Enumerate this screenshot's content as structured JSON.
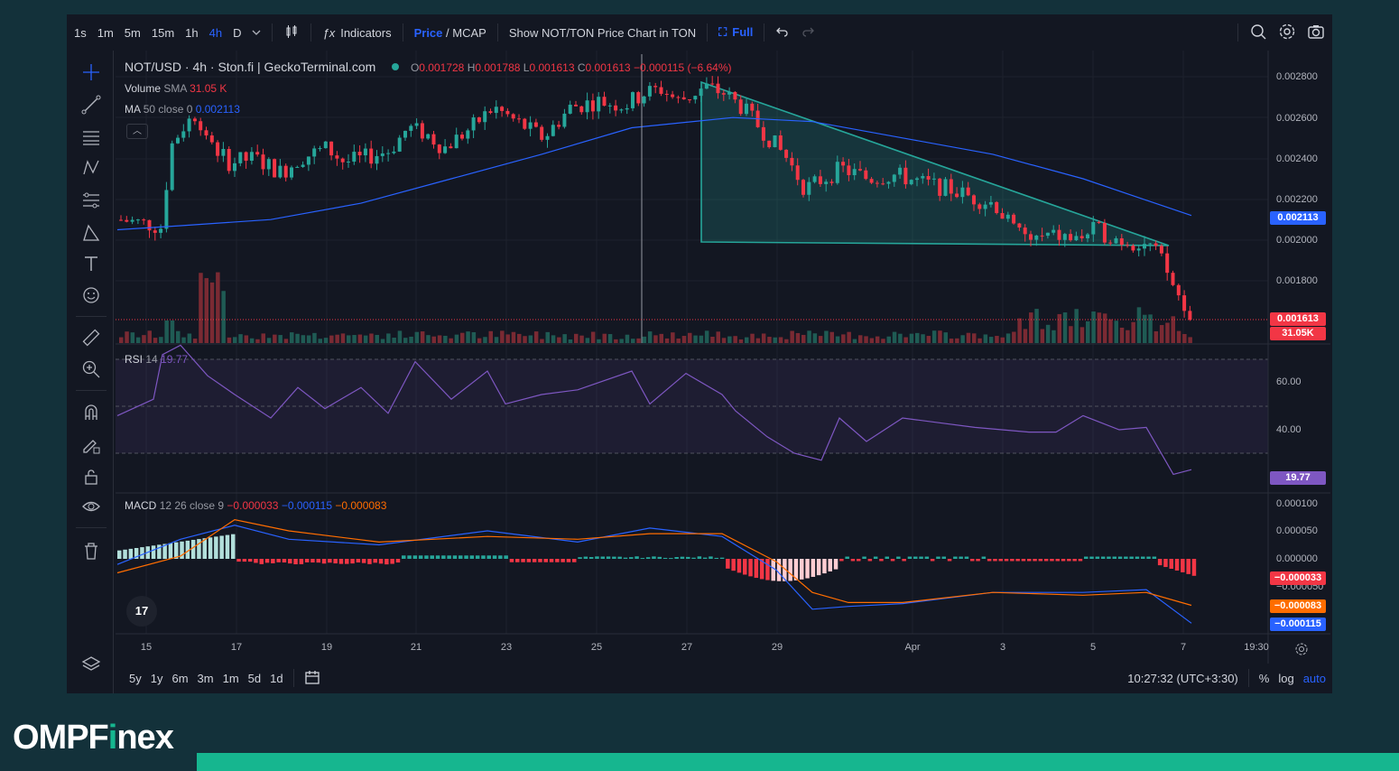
{
  "toolbar": {
    "intervals": [
      "1s",
      "1m",
      "5m",
      "15m",
      "1h",
      "4h",
      "D"
    ],
    "active_interval": "4h",
    "indicators_label": "Indicators",
    "price_label": "Price",
    "mcap_label": "MCAP",
    "price_mcap_sep": " / ",
    "show_ton_label": "Show NOT/TON Price Chart in TON",
    "full_label": "Full"
  },
  "legend": {
    "symbol": "NOT/USD · 4h · Ston.fi | GeckoTerminal.com",
    "o_label": "O",
    "o": "0.001728",
    "h_label": "H",
    "h": "0.001788",
    "l_label": "L",
    "l": "0.001613",
    "c_label": "C",
    "c": "0.001613",
    "change": "−0.000115 (−6.64%)",
    "volume_label": "Volume",
    "volume_sma": "SMA",
    "volume_value": "31.05 K",
    "ma_label": "MA",
    "ma_params": "50 close 0",
    "ma_value": "0.002113"
  },
  "rsi_legend": {
    "label": "RSI",
    "period": "14",
    "value": "19.77"
  },
  "macd_legend": {
    "label": "MACD",
    "params": "12 26 close 9",
    "hist": "−0.000033",
    "macd": "−0.000115",
    "signal": "−0.000083"
  },
  "price_axis": [
    "0.002800",
    "0.002600",
    "0.002400",
    "0.002200",
    "0.002000",
    "0.001800"
  ],
  "rsi_axis": [
    "60.00",
    "40.00"
  ],
  "macd_axis": [
    "0.000100",
    "0.000050",
    "0.000000",
    "−0.000050"
  ],
  "price_labels": {
    "ma": "0.002113",
    "last": "0.001613",
    "volume": "31.05K",
    "rsi": "19.77",
    "hist": "−0.000033",
    "signal": "−0.000083",
    "macd": "−0.000115"
  },
  "time_axis": [
    "15",
    "17",
    "19",
    "21",
    "23",
    "25",
    "27",
    "29",
    "Apr",
    "3",
    "5",
    "7",
    "19:30"
  ],
  "bottom": {
    "ranges": [
      "5y",
      "1y",
      "6m",
      "3m",
      "1m",
      "5d",
      "1d"
    ],
    "clock": "10:27:32 (UTC+3:30)",
    "percent": "%",
    "log": "log",
    "auto": "auto"
  },
  "tv_logo": "17",
  "brand": {
    "pre": "OMPF",
    "mark": "i",
    "post": "nex"
  },
  "colors": {
    "up": "#26a69a",
    "down": "#f23645",
    "ma": "#2962ff",
    "triangle": "#26a69a",
    "rsi": "#7e57c2",
    "macd": "#2962ff",
    "signal": "#ff6d00"
  }
}
